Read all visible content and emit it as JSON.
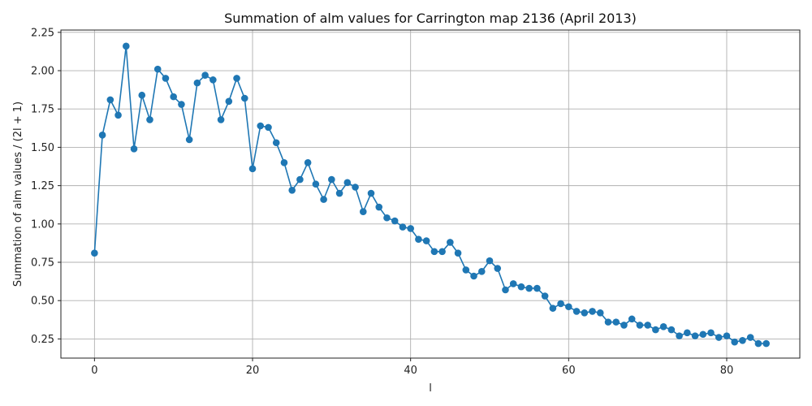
{
  "chart_data": {
    "type": "line",
    "title": "Summation of alm values for Carrington map 2136 (April 2013)",
    "xlabel": "l",
    "ylabel": "Summation of alm values / (2l + 1)",
    "xlim": [
      -4.25,
      89.25
    ],
    "ylim": [
      0.125,
      2.265
    ],
    "xticks": [
      0,
      20,
      40,
      60,
      80
    ],
    "xtick_labels": [
      "0",
      "20",
      "40",
      "60",
      "80"
    ],
    "yticks": [
      0.25,
      0.5,
      0.75,
      1.0,
      1.25,
      1.5,
      1.75,
      2.0,
      2.25
    ],
    "ytick_labels": [
      "0.25",
      "0.50",
      "0.75",
      "1.00",
      "1.25",
      "1.50",
      "1.75",
      "2.00",
      "2.25"
    ],
    "grid": true,
    "color": "#1f77b4",
    "marker": "circle",
    "series": [
      {
        "x": [
          0,
          1,
          2,
          3,
          4,
          5,
          6,
          7,
          8,
          9,
          10,
          11,
          12,
          13,
          14,
          15,
          16,
          17,
          18,
          19,
          20,
          21,
          22,
          23,
          24,
          25,
          26,
          27,
          28,
          29,
          30,
          31,
          32,
          33,
          34,
          35,
          36,
          37,
          38,
          39,
          40,
          41,
          42,
          43,
          44,
          45,
          46,
          47,
          48,
          49,
          50,
          51,
          52,
          53,
          54,
          55,
          56,
          57,
          58,
          59,
          60,
          61,
          62,
          63,
          64,
          65,
          66,
          67,
          68,
          69,
          70,
          71,
          72,
          73,
          74,
          75,
          76,
          77,
          78,
          79,
          80,
          81,
          82,
          83,
          84,
          85
        ],
        "values": [
          0.81,
          1.58,
          1.81,
          1.71,
          2.16,
          1.49,
          1.84,
          1.68,
          2.01,
          1.95,
          1.83,
          1.78,
          1.55,
          1.92,
          1.97,
          1.94,
          1.68,
          1.8,
          1.95,
          1.82,
          1.36,
          1.64,
          1.63,
          1.53,
          1.4,
          1.22,
          1.29,
          1.4,
          1.26,
          1.16,
          1.29,
          1.2,
          1.27,
          1.24,
          1.08,
          1.2,
          1.11,
          1.04,
          1.02,
          0.98,
          0.97,
          0.9,
          0.89,
          0.82,
          0.82,
          0.88,
          0.81,
          0.7,
          0.66,
          0.69,
          0.76,
          0.71,
          0.57,
          0.61,
          0.59,
          0.58,
          0.58,
          0.53,
          0.45,
          0.48,
          0.46,
          0.43,
          0.42,
          0.43,
          0.42,
          0.36,
          0.36,
          0.34,
          0.38,
          0.34,
          0.34,
          0.31,
          0.33,
          0.31,
          0.27,
          0.29,
          0.27,
          0.28,
          0.29,
          0.26,
          0.27,
          0.23,
          0.24,
          0.26,
          0.22,
          0.22
        ]
      }
    ]
  }
}
